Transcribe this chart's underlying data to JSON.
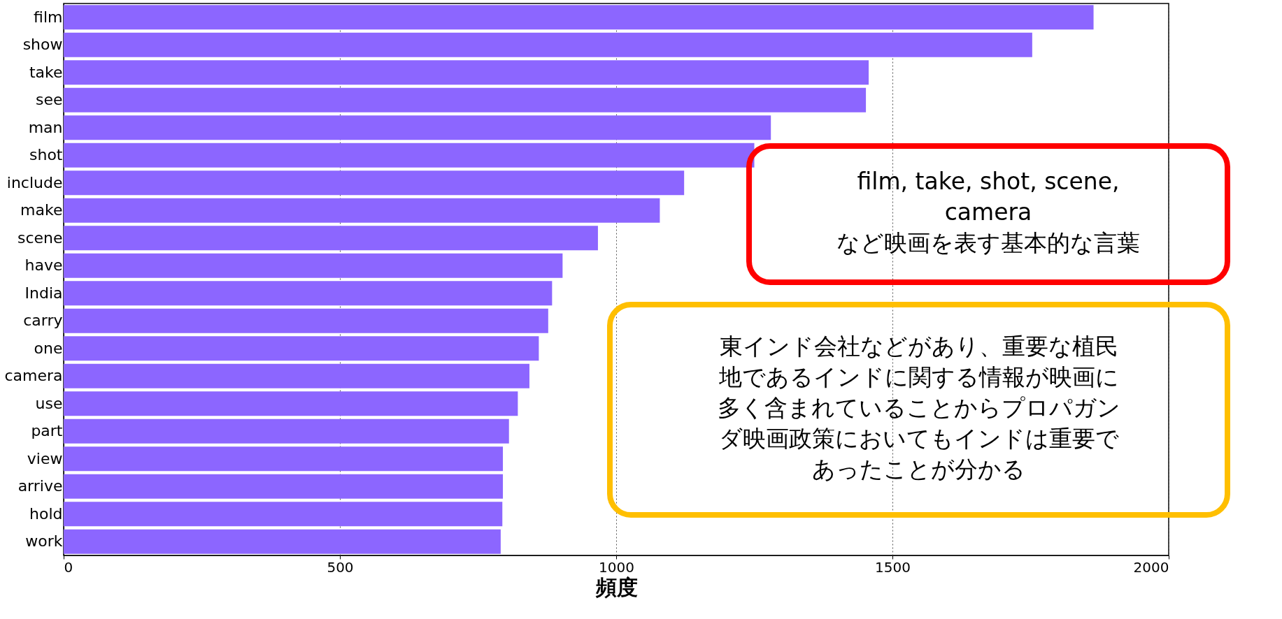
{
  "chart_data": {
    "type": "bar",
    "orientation": "horizontal",
    "xlabel": "頻度",
    "categories": [
      "film",
      "show",
      "take",
      "see",
      "man",
      "shot",
      "include",
      "make",
      "scene",
      "have",
      "India",
      "carry",
      "one",
      "camera",
      "use",
      "part",
      "view",
      "arrive",
      "hold",
      "work"
    ],
    "values": [
      1864,
      1753,
      1457,
      1452,
      1280,
      1250,
      1123,
      1079,
      967,
      903,
      884,
      877,
      860,
      843,
      822,
      806,
      795,
      795,
      794,
      791
    ],
    "color": "#8c66ff",
    "xlim": [
      0,
      2000
    ],
    "xticks": [
      0,
      500,
      1000,
      1500,
      2000
    ],
    "grid": "x",
    "annotations": [
      "film, take, shot, scene,\ncamera\nなど映画を表す基本的な言葉",
      "東インド会社などがあり、重要な植民地であるインドに関する情報が映画に多く含まれていることからプロパガンダ映画政策においてもインドは重要であったことが分かる"
    ]
  }
}
